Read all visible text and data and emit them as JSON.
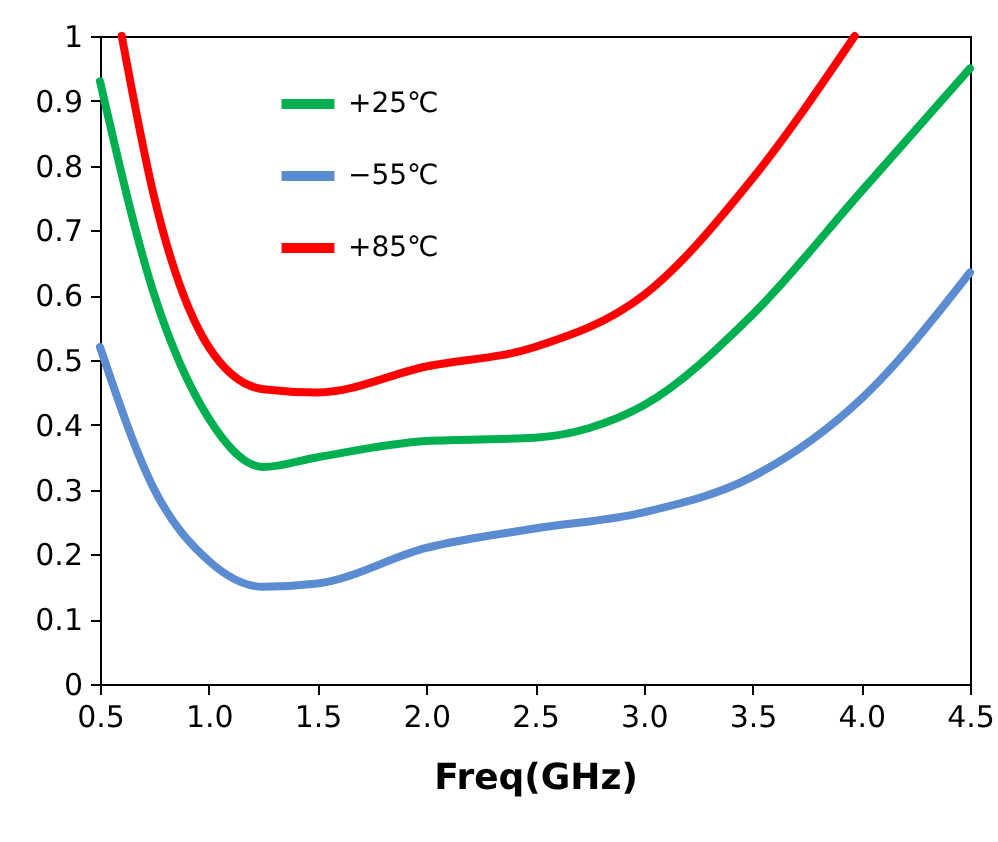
{
  "chart_data": {
    "type": "line",
    "xlabel": "Freq(GHz)",
    "xlim": [
      0.5,
      4.5
    ],
    "ylim": [
      0,
      1
    ],
    "xticks": [
      0.5,
      {
        "value": 1,
        "label": "1.0"
      },
      1.5,
      {
        "value": 2,
        "label": "2.0"
      },
      2.5,
      {
        "value": 3,
        "label": "3.0"
      },
      3.5,
      {
        "value": 4,
        "label": "4.0"
      },
      4.5
    ],
    "yticks": [
      0,
      0.1,
      0.2,
      0.3,
      0.4,
      0.5,
      0.6,
      0.7,
      0.8,
      0.9,
      1
    ],
    "legend": "top left",
    "line_style": "solid",
    "series": [
      {
        "name": "+25℃",
        "color": "#00b050",
        "x": [
          0.5,
          0.75,
          1.0,
          1.25,
          1.5,
          2.0,
          2.5,
          2.75,
          3.0,
          3.5,
          4.0,
          4.5
        ],
        "values": [
          0.93,
          0.6,
          0.41,
          0.335,
          0.35,
          0.375,
          0.38,
          0.395,
          0.43,
          0.57,
          0.76,
          0.95
        ]
      },
      {
        "name": "−55℃",
        "color": "#5b8bd0",
        "x": [
          0.5,
          0.75,
          1.0,
          1.25,
          1.5,
          2.0,
          2.5,
          3.0,
          3.5,
          4.0,
          4.5
        ],
        "values": [
          0.52,
          0.3,
          0.19,
          0.15,
          0.155,
          0.21,
          0.24,
          0.265,
          0.32,
          0.44,
          0.635
        ]
      },
      {
        "name": "+85℃",
        "color": "#ff0000",
        "x": [
          0.6,
          0.75,
          1.0,
          1.25,
          1.5,
          2.0,
          2.5,
          3.0,
          3.5,
          3.97
        ],
        "values": [
          1.0,
          0.75,
          0.52,
          0.455,
          0.45,
          0.49,
          0.52,
          0.6,
          0.78,
          1.0
        ]
      }
    ]
  }
}
